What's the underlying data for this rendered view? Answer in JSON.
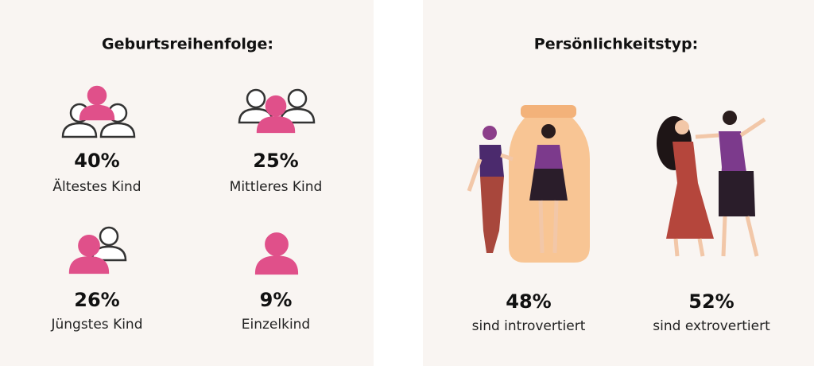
{
  "left": {
    "title": "Geburtsreihenfolge:",
    "items": [
      {
        "value": "40%",
        "label": "Ältestes Kind"
      },
      {
        "value": "25%",
        "label": "Mittleres Kind"
      },
      {
        "value": "26%",
        "label": "Jüngstes Kind"
      },
      {
        "value": "9%",
        "label": "Einzelkind"
      }
    ]
  },
  "right": {
    "title": "Persönlichkeitstyp:",
    "items": [
      {
        "value": "48%",
        "label": "sind introvertiert"
      },
      {
        "value": "52%",
        "label": "sind extrovertiert"
      }
    ]
  }
}
